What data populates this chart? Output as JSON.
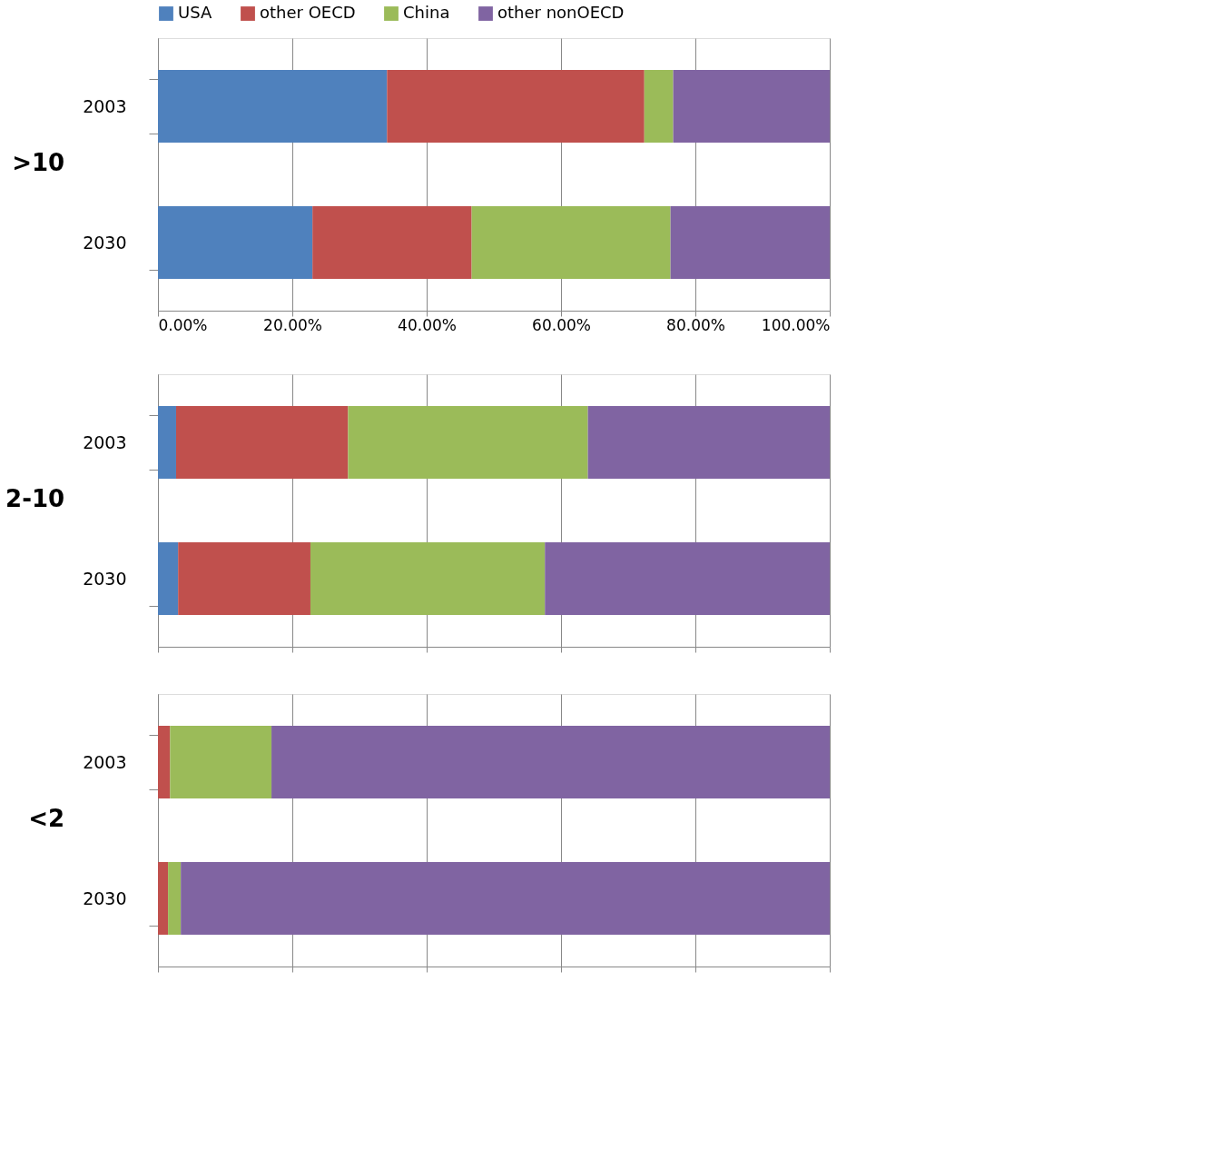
{
  "chart_data": [
    {
      "type": "bar",
      "orientation": "horizontal",
      "stacked": true,
      "ylabel": ">10",
      "categories": [
        "2003",
        "2030"
      ],
      "legend": "top",
      "grid": "x",
      "xlim": [
        0,
        100
      ],
      "xticks": [
        {
          "value": 0,
          "label": "0.00%"
        },
        {
          "value": 20,
          "label": "20.00%"
        },
        {
          "value": 40,
          "label": "40.00%"
        },
        {
          "value": 60,
          "label": "60.00%"
        },
        {
          "value": 80,
          "label": "80.00%"
        },
        {
          "value": 100,
          "label": "100.00%"
        }
      ],
      "series": [
        {
          "name": "USA",
          "color": "#4f81bd",
          "values": [
            34.1,
            23.0
          ]
        },
        {
          "name": "other OECD",
          "color": "#c0504d",
          "values": [
            38.3,
            23.7
          ]
        },
        {
          "name": "China",
          "color": "#9bbb59",
          "values": [
            4.3,
            29.6
          ]
        },
        {
          "name": "other nonOECD",
          "color": "#8064a2",
          "values": [
            23.3,
            23.7
          ]
        }
      ]
    },
    {
      "type": "bar",
      "orientation": "horizontal",
      "stacked": true,
      "ylabel": "2-10",
      "categories": [
        "2003",
        "2030"
      ],
      "legend": false,
      "grid": "x",
      "tick_labels": "y",
      "xlim": [
        0,
        100
      ],
      "xticks": [
        0,
        20,
        40,
        60,
        80,
        100
      ],
      "series": [
        {
          "color": "#4f81bd",
          "values": [
            2.7,
            3.0
          ]
        },
        {
          "color": "#c0504d",
          "values": [
            25.6,
            19.7
          ]
        },
        {
          "color": "#9bbb59",
          "values": [
            35.7,
            34.9
          ]
        },
        {
          "color": "#8064a2",
          "values": [
            36.0,
            42.4
          ]
        }
      ]
    },
    {
      "type": "bar",
      "orientation": "horizontal",
      "stacked": true,
      "ylabel": "<2",
      "categories": [
        "2003",
        "2030"
      ],
      "legend": false,
      "grid": "x",
      "tick_labels": "y",
      "xlim": [
        0,
        100
      ],
      "xticks": [
        0,
        20,
        40,
        60,
        80,
        100
      ],
      "series": [
        {
          "color": "#4f81bd",
          "values": [
            0,
            0
          ]
        },
        {
          "color": "#c0504d",
          "values": [
            1.8,
            1.5
          ]
        },
        {
          "color": "#9bbb59",
          "values": [
            15.1,
            1.9
          ]
        },
        {
          "color": "#8064a2",
          "values": [
            83.1,
            96.6
          ]
        }
      ]
    }
  ]
}
